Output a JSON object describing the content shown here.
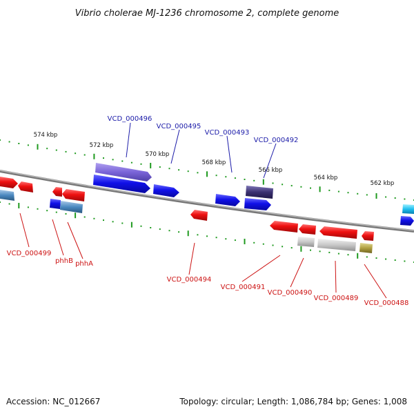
{
  "title": "Vibrio cholerae MJ-1236 chromosome 2, complete genome",
  "footer": {
    "accession": "Accession: NC_012667",
    "summary": "Topology: circular; Length: 1,086,784 bp; Genes: 1,008"
  },
  "scale_labels": [
    "574 kbp",
    "572 kbp",
    "570 kbp",
    "568 kbp",
    "566 kbp",
    "564 kbp",
    "562 kbp"
  ],
  "gene_labels_top": [
    "VCD_000496",
    "VCD_000495",
    "VCD_000493",
    "VCD_000492"
  ],
  "gene_labels_bottom": [
    "VCD_000499",
    "phhB",
    "phhA",
    "VCD_000494",
    "VCD_000491",
    "VCD_000490",
    "VCD_000489",
    "VCD_000488"
  ],
  "colors": {
    "backbone": "#8a8a8a",
    "tick": "#1f9a1f",
    "forward_gene": "#1414e6",
    "reverse_gene": "#e01414",
    "label_blue": "#1a1aa8",
    "label_red": "#cc1111"
  }
}
